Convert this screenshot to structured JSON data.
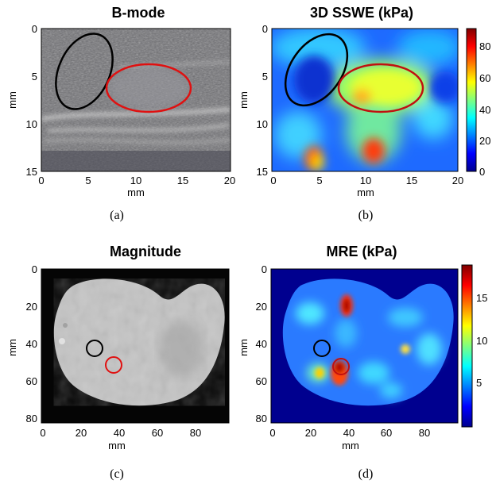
{
  "figure": {
    "panels": [
      {
        "id": "a",
        "title": "B-mode",
        "caption": "(a)",
        "xlabel": "mm",
        "ylabel": "mm",
        "xticks": [
          "0",
          "5",
          "10",
          "15",
          "20"
        ],
        "yticks": [
          "0",
          "5",
          "10",
          "15"
        ],
        "image": "grayscale ultrasound B-mode image",
        "regions": [
          {
            "color": "#000000",
            "shape": "ellipse"
          },
          {
            "color": "#e01010",
            "shape": "ellipse"
          }
        ]
      },
      {
        "id": "b",
        "title": "3D SSWE (kPa)",
        "caption": "(b)",
        "xlabel": "mm",
        "ylabel": "mm",
        "xticks": [
          "0",
          "5",
          "10",
          "15",
          "20"
        ],
        "yticks": [
          "0",
          "5",
          "10",
          "15"
        ],
        "image": "jet colormap elasticity map",
        "colorbar": {
          "ticks": [
            "80",
            "60",
            "40",
            "20",
            "0"
          ],
          "min": 0,
          "max": 90,
          "colormap": "jet"
        },
        "regions": [
          {
            "color": "#000000",
            "shape": "ellipse"
          },
          {
            "color": "#c01010",
            "shape": "ellipse"
          }
        ]
      },
      {
        "id": "c",
        "title": "Magnitude",
        "caption": "(c)",
        "xlabel": "mm",
        "ylabel": "mm",
        "xticks": [
          "0",
          "20",
          "40",
          "60",
          "80"
        ],
        "yticks": [
          "0",
          "20",
          "40",
          "60",
          "80"
        ],
        "image": "grayscale MRI magnitude image",
        "regions": [
          {
            "color": "#000000",
            "shape": "circle"
          },
          {
            "color": "#e01010",
            "shape": "circle"
          }
        ]
      },
      {
        "id": "d",
        "title": "MRE (kPa)",
        "caption": "(d)",
        "xlabel": "mm",
        "ylabel": "mm",
        "xticks": [
          "0",
          "20",
          "40",
          "60",
          "80"
        ],
        "yticks": [
          "0",
          "20",
          "40",
          "60",
          "80"
        ],
        "image": "jet colormap MRE stiffness map",
        "colorbar": {
          "ticks": [
            "15",
            "10",
            "5"
          ],
          "min": 0,
          "max": 19,
          "colormap": "jet"
        },
        "regions": [
          {
            "color": "#000000",
            "shape": "circle"
          },
          {
            "color": "#c01010",
            "shape": "circle"
          }
        ]
      }
    ]
  }
}
